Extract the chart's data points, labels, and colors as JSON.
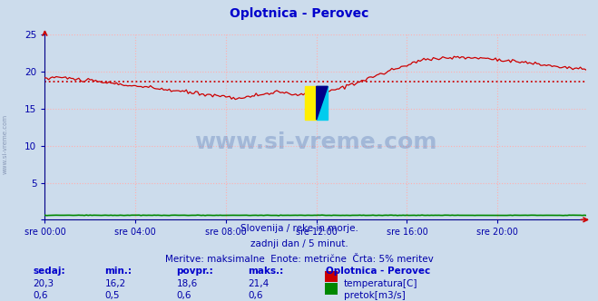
{
  "title": "Oplotnica - Perovec",
  "title_color": "#0000cc",
  "bg_color": "#ccdcec",
  "plot_bg_color": "#ccdcec",
  "grid_color": "#ffb0b0",
  "grid_style": ":",
  "axis_color": "#000088",
  "tick_label_color": "#0000aa",
  "xlim": [
    0,
    287
  ],
  "ylim": [
    0,
    25
  ],
  "yticks": [
    0,
    5,
    10,
    15,
    20,
    25
  ],
  "xtick_positions": [
    0,
    48,
    96,
    144,
    192,
    240
  ],
  "xtick_labels": [
    "sre 00:00",
    "sre 04:00",
    "sre 08:00",
    "sre 12:00",
    "sre 16:00",
    "sre 20:00"
  ],
  "avg_temp": 18.6,
  "temp_color": "#cc0000",
  "flow_color": "#008800",
  "avg_line_color": "#cc0000",
  "watermark": "www.si-vreme.com",
  "watermark_color": "#4466aa",
  "watermark_alpha": 0.3,
  "footer_line1": "Slovenija / reke in morje.",
  "footer_line2": "zadnji dan / 5 minut.",
  "footer_line3": "Meritve: maksimalne  Enote: metrične  Črta: 5% meritev",
  "footer_color": "#0000aa",
  "table_headers": [
    "sedaj:",
    "min.:",
    "povpr.:",
    "maks.:"
  ],
  "table_color": "#0000cc",
  "row1_values": [
    "20,3",
    "16,2",
    "18,6",
    "21,4"
  ],
  "row2_values": [
    "0,6",
    "0,5",
    "0,6",
    "0,6"
  ],
  "legend_title": "Oplotnica - Perovec",
  "legend_label1": "temperatura[C]",
  "legend_label2": "pretok[m3/s]",
  "legend_color": "#0000cc",
  "sidebar_text": "www.si-vreme.com",
  "sidebar_color": "#7788aa"
}
